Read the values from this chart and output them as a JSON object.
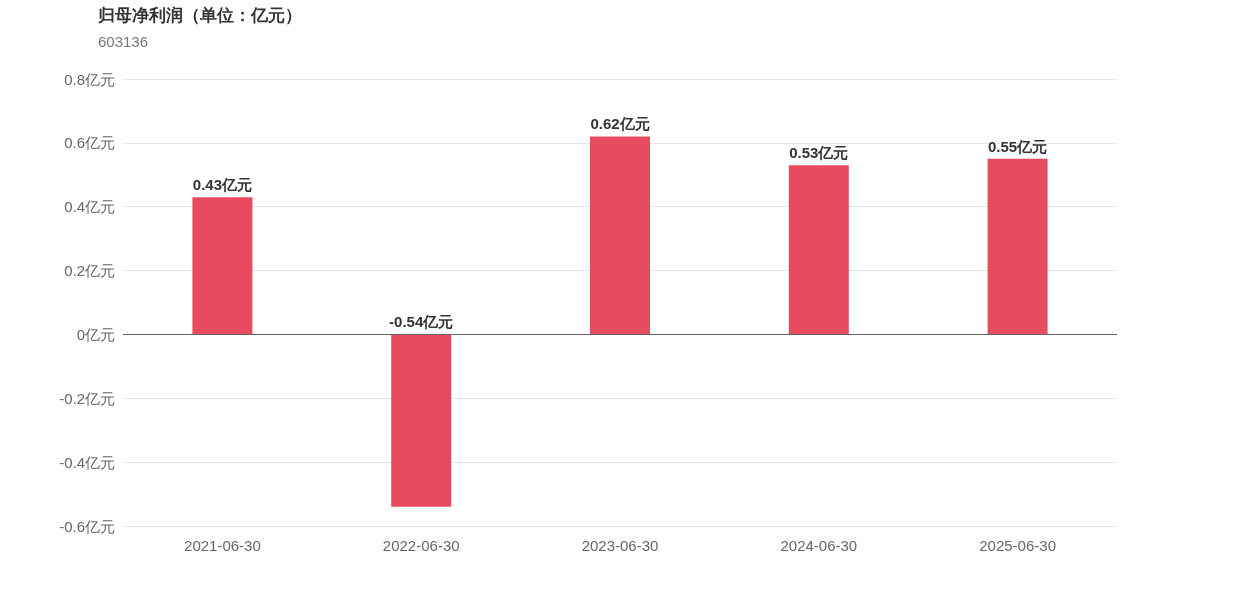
{
  "chart_data": {
    "type": "bar",
    "title": "归母净利润（单位：亿元）",
    "subtitle": "603136",
    "categories": [
      "2021-06-30",
      "2022-06-30",
      "2023-06-30",
      "2024-06-30",
      "2025-06-30"
    ],
    "values": [
      0.43,
      -0.54,
      0.62,
      0.53,
      0.55
    ],
    "color": "#e64c5e",
    "value_labels": [
      "0.43亿元",
      "-0.54亿元",
      "0.62亿元",
      "0.53亿元",
      "0.55亿元"
    ],
    "ylim": [
      -0.6,
      0.8
    ],
    "yticks": [
      {
        "value": -0.6,
        "label": "-0.6亿元"
      },
      {
        "value": -0.4,
        "label": "-0.4亿元"
      },
      {
        "value": -0.2,
        "label": "-0.2亿元"
      },
      {
        "value": 0,
        "label": "0亿元"
      },
      {
        "value": 0.2,
        "label": "0.2亿元"
      },
      {
        "value": 0.4,
        "label": "0.4亿元"
      },
      {
        "value": 0.6,
        "label": "0.6亿元"
      },
      {
        "value": 0.8,
        "label": "0.8亿元"
      }
    ],
    "grid": "y"
  }
}
